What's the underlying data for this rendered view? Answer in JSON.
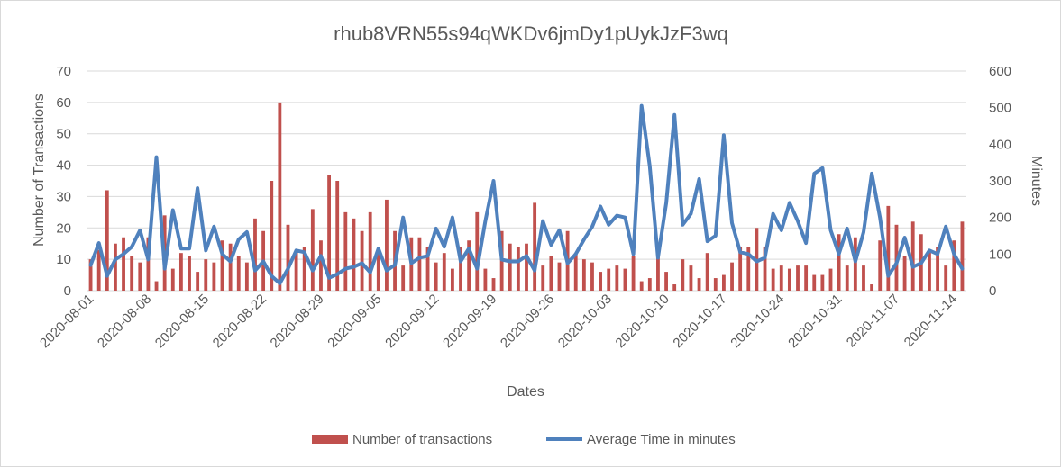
{
  "chart_data": {
    "type": "bar",
    "title": "rhub8VRN55s94qWKDv6jmDy1pUykJzF3wq",
    "xlabel": "Dates",
    "ylabel": "Number of Transactions",
    "y2label": "Minutes",
    "ylim": [
      0,
      70
    ],
    "y2lim": [
      0,
      600
    ],
    "yticks": [
      0,
      10,
      20,
      30,
      40,
      50,
      60,
      70
    ],
    "y2ticks": [
      0,
      100,
      200,
      300,
      400,
      500,
      600
    ],
    "grid": "horizontal",
    "legend": "bottom",
    "x_start": "2020-08-01",
    "x_tick_labels": [
      "2020-08-01",
      "2020-08-08",
      "2020-08-15",
      "2020-08-22",
      "2020-08-29",
      "2020-09-05",
      "2020-09-12",
      "2020-09-19",
      "2020-09-26",
      "2020-10-03",
      "2020-10-10",
      "2020-10-17",
      "2020-10-24",
      "2020-10-31",
      "2020-11-07",
      "2020-11-14"
    ],
    "colors": {
      "bars": "#c0504d",
      "line": "#4f81bd",
      "grid": "#d9d9d9",
      "text": "#595959"
    },
    "series": [
      {
        "name": "Number of transactions",
        "type": "bar",
        "axis": "left",
        "values": [
          10,
          13,
          32,
          15,
          17,
          11,
          9,
          17,
          3,
          24,
          7,
          12,
          11,
          6,
          10,
          9,
          16,
          15,
          11,
          9,
          23,
          19,
          35,
          60,
          21,
          13,
          14,
          26,
          16,
          37,
          35,
          25,
          23,
          19,
          25,
          13,
          29,
          19,
          8,
          17,
          17,
          14,
          9,
          12,
          7,
          14,
          16,
          25,
          7,
          4,
          19,
          15,
          14,
          15,
          28,
          8,
          11,
          9,
          19,
          12,
          10,
          9,
          6,
          7,
          8,
          7,
          11,
          3,
          4,
          11,
          6,
          2,
          10,
          8,
          4,
          12,
          4,
          5,
          9,
          14,
          14,
          20,
          14,
          7,
          8,
          7,
          8,
          8,
          5,
          5,
          7,
          18,
          8,
          17,
          8,
          2,
          16,
          27,
          21,
          11,
          22,
          18,
          13,
          14,
          8,
          16,
          22
        ]
      },
      {
        "name": "Average Time in minutes",
        "type": "line",
        "axis": "right",
        "values": [
          70,
          130,
          40,
          85,
          100,
          120,
          165,
          85,
          365,
          60,
          220,
          115,
          115,
          280,
          110,
          175,
          100,
          80,
          140,
          160,
          55,
          80,
          40,
          20,
          60,
          110,
          105,
          55,
          95,
          35,
          45,
          60,
          65,
          75,
          50,
          115,
          55,
          70,
          200,
          75,
          90,
          95,
          170,
          120,
          200,
          80,
          115,
          60,
          190,
          300,
          85,
          80,
          80,
          95,
          55,
          190,
          125,
          165,
          75,
          100,
          140,
          175,
          230,
          180,
          205,
          200,
          100,
          505,
          340,
          90,
          240,
          480,
          180,
          210,
          305,
          135,
          150,
          425,
          185,
          105,
          100,
          80,
          90,
          210,
          165,
          240,
          190,
          130,
          320,
          335,
          165,
          100,
          170,
          80,
          160,
          320,
          200,
          40,
          75,
          145,
          65,
          75,
          110,
          100,
          175,
          100,
          60
        ]
      }
    ]
  }
}
